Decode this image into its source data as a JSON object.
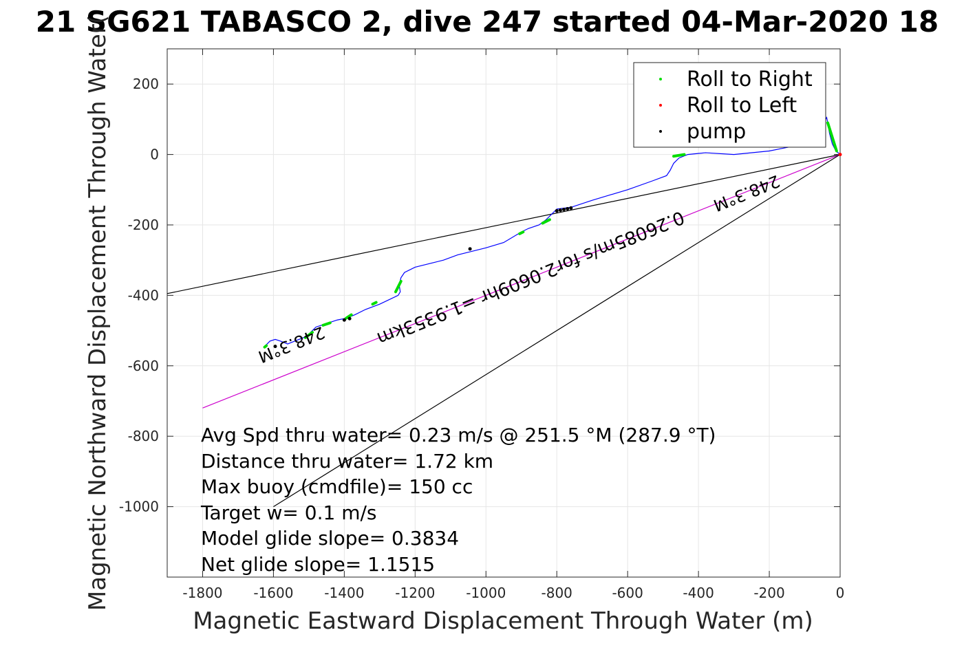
{
  "page": {
    "background": "#ffffff"
  },
  "chart_data": {
    "type": "line",
    "title": "21 SG621 TABASCO 2, dive 247 started 04-Mar-2020 18",
    "xlabel": "Magnetic Eastward Displacement Through Water (m)",
    "ylabel": "Magnetic Northward Displacement Through Water(",
    "xlim": [
      -1900,
      0
    ],
    "ylim": [
      -1200,
      300
    ],
    "xticks": [
      -1800,
      -1600,
      -1400,
      -1200,
      -1000,
      -800,
      -600,
      -400,
      -200,
      0
    ],
    "yticks": [
      200,
      0,
      -200,
      -400,
      -600,
      -800,
      -1000
    ],
    "grid": true,
    "legend": {
      "position": "top-right",
      "entries": [
        {
          "label": "Roll to Right",
          "color": "#00dd00"
        },
        {
          "label": "Roll to Left",
          "color": "#ff0000"
        },
        {
          "label": "pump",
          "color": "#000000"
        }
      ]
    },
    "track": {
      "color": "#0000ff",
      "x": [
        0,
        -12,
        -22,
        -30,
        -35,
        -38,
        -55,
        -100,
        -200,
        -300,
        -380,
        -430,
        -455,
        -470,
        -480,
        -490,
        -530,
        -600,
        -650,
        -700,
        -760,
        -800,
        -830,
        -850,
        -880,
        -900,
        -950,
        -1000,
        -1040,
        -1080,
        -1120,
        -1160,
        -1200,
        -1230,
        -1240,
        -1245,
        -1242,
        -1248,
        -1300,
        -1340,
        -1370,
        -1395,
        -1420,
        -1450,
        -1480,
        -1500,
        -1515,
        -1540,
        -1560,
        -1580,
        -1595,
        -1610,
        -1625
      ],
      "y": [
        0,
        10,
        30,
        60,
        90,
        105,
        75,
        30,
        10,
        0,
        5,
        0,
        -10,
        -25,
        -45,
        -60,
        -75,
        -100,
        -115,
        -130,
        -150,
        -155,
        -185,
        -200,
        -210,
        -220,
        -250,
        -265,
        -275,
        -285,
        -300,
        -310,
        -320,
        -335,
        -350,
        -370,
        -390,
        -400,
        -425,
        -440,
        -455,
        -465,
        -470,
        -480,
        -490,
        -510,
        -520,
        -530,
        -538,
        -530,
        -525,
        -530,
        -545
      ]
    },
    "roll_right_segments": [
      [
        -35,
        -10,
        90,
        10
      ],
      [
        -470,
        -440,
        -5,
        0
      ],
      [
        -840,
        -820,
        -195,
        -185
      ],
      [
        -905,
        -895,
        -225,
        -220
      ],
      [
        -1255,
        -1240,
        -390,
        -360
      ],
      [
        -1320,
        -1310,
        -425,
        -420
      ],
      [
        -1395,
        -1380,
        -465,
        -455
      ],
      [
        -1460,
        -1440,
        -485,
        -478
      ],
      [
        -1510,
        -1490,
        -520,
        -505
      ],
      [
        -1625,
        -1620,
        -547,
        -543
      ]
    ],
    "pump_points": {
      "x": [
        -800,
        -790,
        -780,
        -770,
        -760,
        -1045,
        -1400,
        -1385,
        -1595
      ],
      "y": [
        -160,
        -158,
        -156,
        -154,
        -152,
        -268,
        -470,
        -466,
        -545
      ]
    },
    "reference_lines": [
      {
        "x": [
          -1900,
          0
        ],
        "y": [
          -395,
          0
        ],
        "color": "#000000"
      },
      {
        "x": [
          -1800,
          0
        ],
        "y": [
          -720,
          0
        ],
        "color": "#cc00cc"
      },
      {
        "x": [
          -1600,
          0
        ],
        "y": [
          -1000,
          0
        ],
        "color": "#000000"
      }
    ],
    "rotated_labels": [
      {
        "text": "248.3°M",
        "x": -1555,
        "y": -525,
        "rotate": 158,
        "size": 24
      },
      {
        "text": "0.26085m/s for2.0609hr =1.9353km",
        "x": -880,
        "y": -335,
        "rotate": 158,
        "size": 26
      },
      {
        "text": "248.3°M",
        "x": -270,
        "y": -95,
        "rotate": 158,
        "size": 24
      },
      {
        "text": "",
        "x": 0,
        "y": 0,
        "rotate": 0,
        "size": 0
      }
    ],
    "stats": [
      "Avg Spd thru water=  0.23 m/s @ 251.5 °M (287.9 °T)",
      "Distance thru water=  1.72 km",
      "Max buoy (cmdfile)= 150 cc",
      "Target w= 0.1 m/s",
      "Model glide slope= 0.3834",
      "Net glide slope= 1.1515"
    ]
  }
}
